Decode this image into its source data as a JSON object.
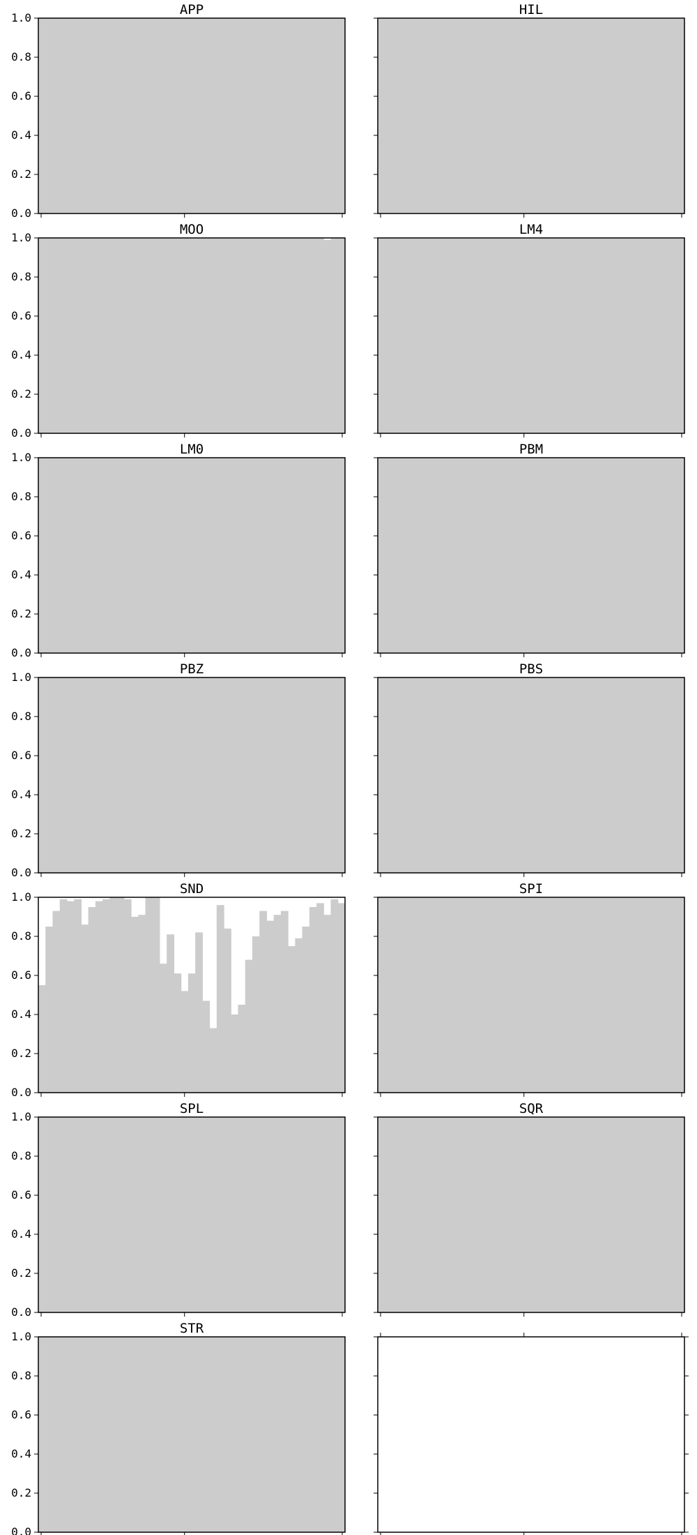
{
  "chart_data": {
    "type": "bar",
    "layout": "small-multiples",
    "ylim": [
      0,
      1
    ],
    "yticks": [
      "0.0",
      "0.2",
      "0.4",
      "0.6",
      "0.8",
      "1.0"
    ],
    "xlim": [
      1,
      43
    ],
    "xticks": [
      "1",
      "21",
      "43"
    ],
    "bar_color": "#cccccc",
    "panels": [
      {
        "title": "APP",
        "values": [
          1,
          1,
          1,
          1,
          1,
          1,
          1,
          1,
          1,
          1,
          1,
          1,
          1,
          1,
          1,
          1,
          1,
          1,
          1,
          1,
          1,
          1,
          1,
          1,
          1,
          1,
          1,
          1,
          1,
          1,
          1,
          1,
          1,
          1,
          1,
          1,
          1,
          1,
          1,
          1,
          1,
          1,
          1
        ]
      },
      {
        "title": "HIL",
        "values": [
          1,
          1,
          1,
          1,
          1,
          1,
          1,
          1,
          1,
          1,
          1,
          1,
          1,
          1,
          1,
          1,
          1,
          1,
          1,
          1,
          1,
          1,
          1,
          1,
          1,
          1,
          1,
          1,
          1,
          1,
          1,
          1,
          1,
          1,
          1,
          1,
          1,
          1,
          1,
          1,
          1,
          1,
          1
        ]
      },
      {
        "title": "MOO",
        "values": [
          1,
          1,
          1,
          1,
          1,
          1,
          1,
          1,
          1,
          1,
          1,
          1,
          1,
          1,
          1,
          1,
          1,
          1,
          1,
          1,
          1,
          1,
          1,
          1,
          1,
          1,
          1,
          1,
          1,
          1,
          1,
          1,
          1,
          1,
          1,
          1,
          1,
          1,
          1,
          1,
          0.99,
          1,
          1
        ]
      },
      {
        "title": "LM4",
        "values": [
          1,
          1,
          1,
          1,
          1,
          1,
          1,
          1,
          1,
          1,
          1,
          1,
          1,
          1,
          1,
          1,
          1,
          1,
          1,
          1,
          1,
          1,
          1,
          1,
          1,
          1,
          1,
          1,
          1,
          1,
          1,
          1,
          1,
          1,
          1,
          1,
          1,
          1,
          1,
          1,
          1,
          1,
          1
        ]
      },
      {
        "title": "LM0",
        "values": [
          1,
          1,
          1,
          1,
          1,
          1,
          1,
          1,
          1,
          1,
          1,
          1,
          1,
          1,
          1,
          1,
          1,
          1,
          1,
          1,
          1,
          1,
          1,
          1,
          1,
          1,
          1,
          1,
          1,
          1,
          1,
          1,
          1,
          1,
          1,
          1,
          1,
          1,
          1,
          1,
          1,
          1,
          1
        ]
      },
      {
        "title": "PBM",
        "values": [
          1,
          1,
          1,
          1,
          1,
          1,
          1,
          1,
          1,
          1,
          1,
          1,
          1,
          1,
          1,
          1,
          1,
          1,
          1,
          1,
          1,
          1,
          1,
          1,
          1,
          1,
          1,
          1,
          1,
          1,
          1,
          1,
          1,
          1,
          1,
          1,
          1,
          1,
          1,
          1,
          1,
          1,
          1
        ]
      },
      {
        "title": "PBZ",
        "values": [
          1,
          1,
          1,
          1,
          1,
          1,
          1,
          1,
          1,
          1,
          1,
          1,
          1,
          1,
          1,
          1,
          1,
          1,
          1,
          1,
          1,
          1,
          1,
          1,
          1,
          1,
          1,
          1,
          1,
          1,
          1,
          1,
          1,
          1,
          1,
          1,
          1,
          1,
          1,
          1,
          1,
          1,
          1
        ]
      },
      {
        "title": "PBS",
        "values": [
          1,
          1,
          1,
          1,
          1,
          1,
          1,
          1,
          1,
          1,
          1,
          1,
          1,
          1,
          1,
          1,
          1,
          1,
          1,
          1,
          1,
          1,
          1,
          1,
          1,
          1,
          1,
          1,
          1,
          1,
          1,
          1,
          1,
          1,
          1,
          1,
          1,
          1,
          1,
          1,
          1,
          1,
          1
        ]
      },
      {
        "title": "SND",
        "values": [
          0.55,
          0.85,
          0.93,
          0.99,
          0.98,
          0.99,
          0.86,
          0.95,
          0.98,
          0.99,
          1,
          1,
          0.99,
          0.9,
          0.91,
          1,
          1,
          0.66,
          0.81,
          0.61,
          0.52,
          0.61,
          0.82,
          0.47,
          0.33,
          0.96,
          0.84,
          0.4,
          0.45,
          0.68,
          0.8,
          0.93,
          0.88,
          0.91,
          0.93,
          0.75,
          0.79,
          0.85,
          0.95,
          0.97,
          0.91,
          0.99,
          0.97
        ]
      },
      {
        "title": "SPI",
        "values": [
          1,
          1,
          1,
          1,
          1,
          1,
          1,
          1,
          1,
          1,
          1,
          1,
          1,
          1,
          1,
          1,
          1,
          1,
          1,
          1,
          1,
          1,
          1,
          1,
          1,
          1,
          1,
          1,
          1,
          1,
          1,
          1,
          1,
          1,
          1,
          1,
          1,
          1,
          1,
          1,
          1,
          1,
          1
        ]
      },
      {
        "title": "SPL",
        "values": [
          1,
          1,
          1,
          1,
          1,
          1,
          1,
          1,
          1,
          1,
          1,
          1,
          1,
          1,
          1,
          1,
          1,
          1,
          1,
          1,
          1,
          1,
          1,
          1,
          1,
          1,
          1,
          1,
          1,
          1,
          1,
          1,
          1,
          1,
          1,
          1,
          1,
          1,
          1,
          1,
          1,
          1,
          1
        ]
      },
      {
        "title": "SQR",
        "values": [
          1,
          1,
          1,
          1,
          1,
          1,
          1,
          1,
          1,
          1,
          1,
          1,
          1,
          1,
          1,
          1,
          1,
          1,
          1,
          1,
          1,
          1,
          1,
          1,
          1,
          1,
          1,
          1,
          1,
          1,
          1,
          1,
          1,
          1,
          1,
          1,
          1,
          1,
          1,
          1,
          1,
          1,
          1
        ]
      },
      {
        "title": "STR",
        "values": [
          1,
          1,
          1,
          1,
          1,
          1,
          1,
          1,
          1,
          1,
          1,
          1,
          1,
          1,
          1,
          1,
          1,
          1,
          1,
          1,
          1,
          1,
          1,
          1,
          1,
          1,
          1,
          1,
          1,
          1,
          1,
          1,
          1,
          1,
          1,
          1,
          1,
          1,
          1,
          1,
          1,
          1,
          1
        ]
      },
      {
        "title": "",
        "values": []
      }
    ]
  }
}
